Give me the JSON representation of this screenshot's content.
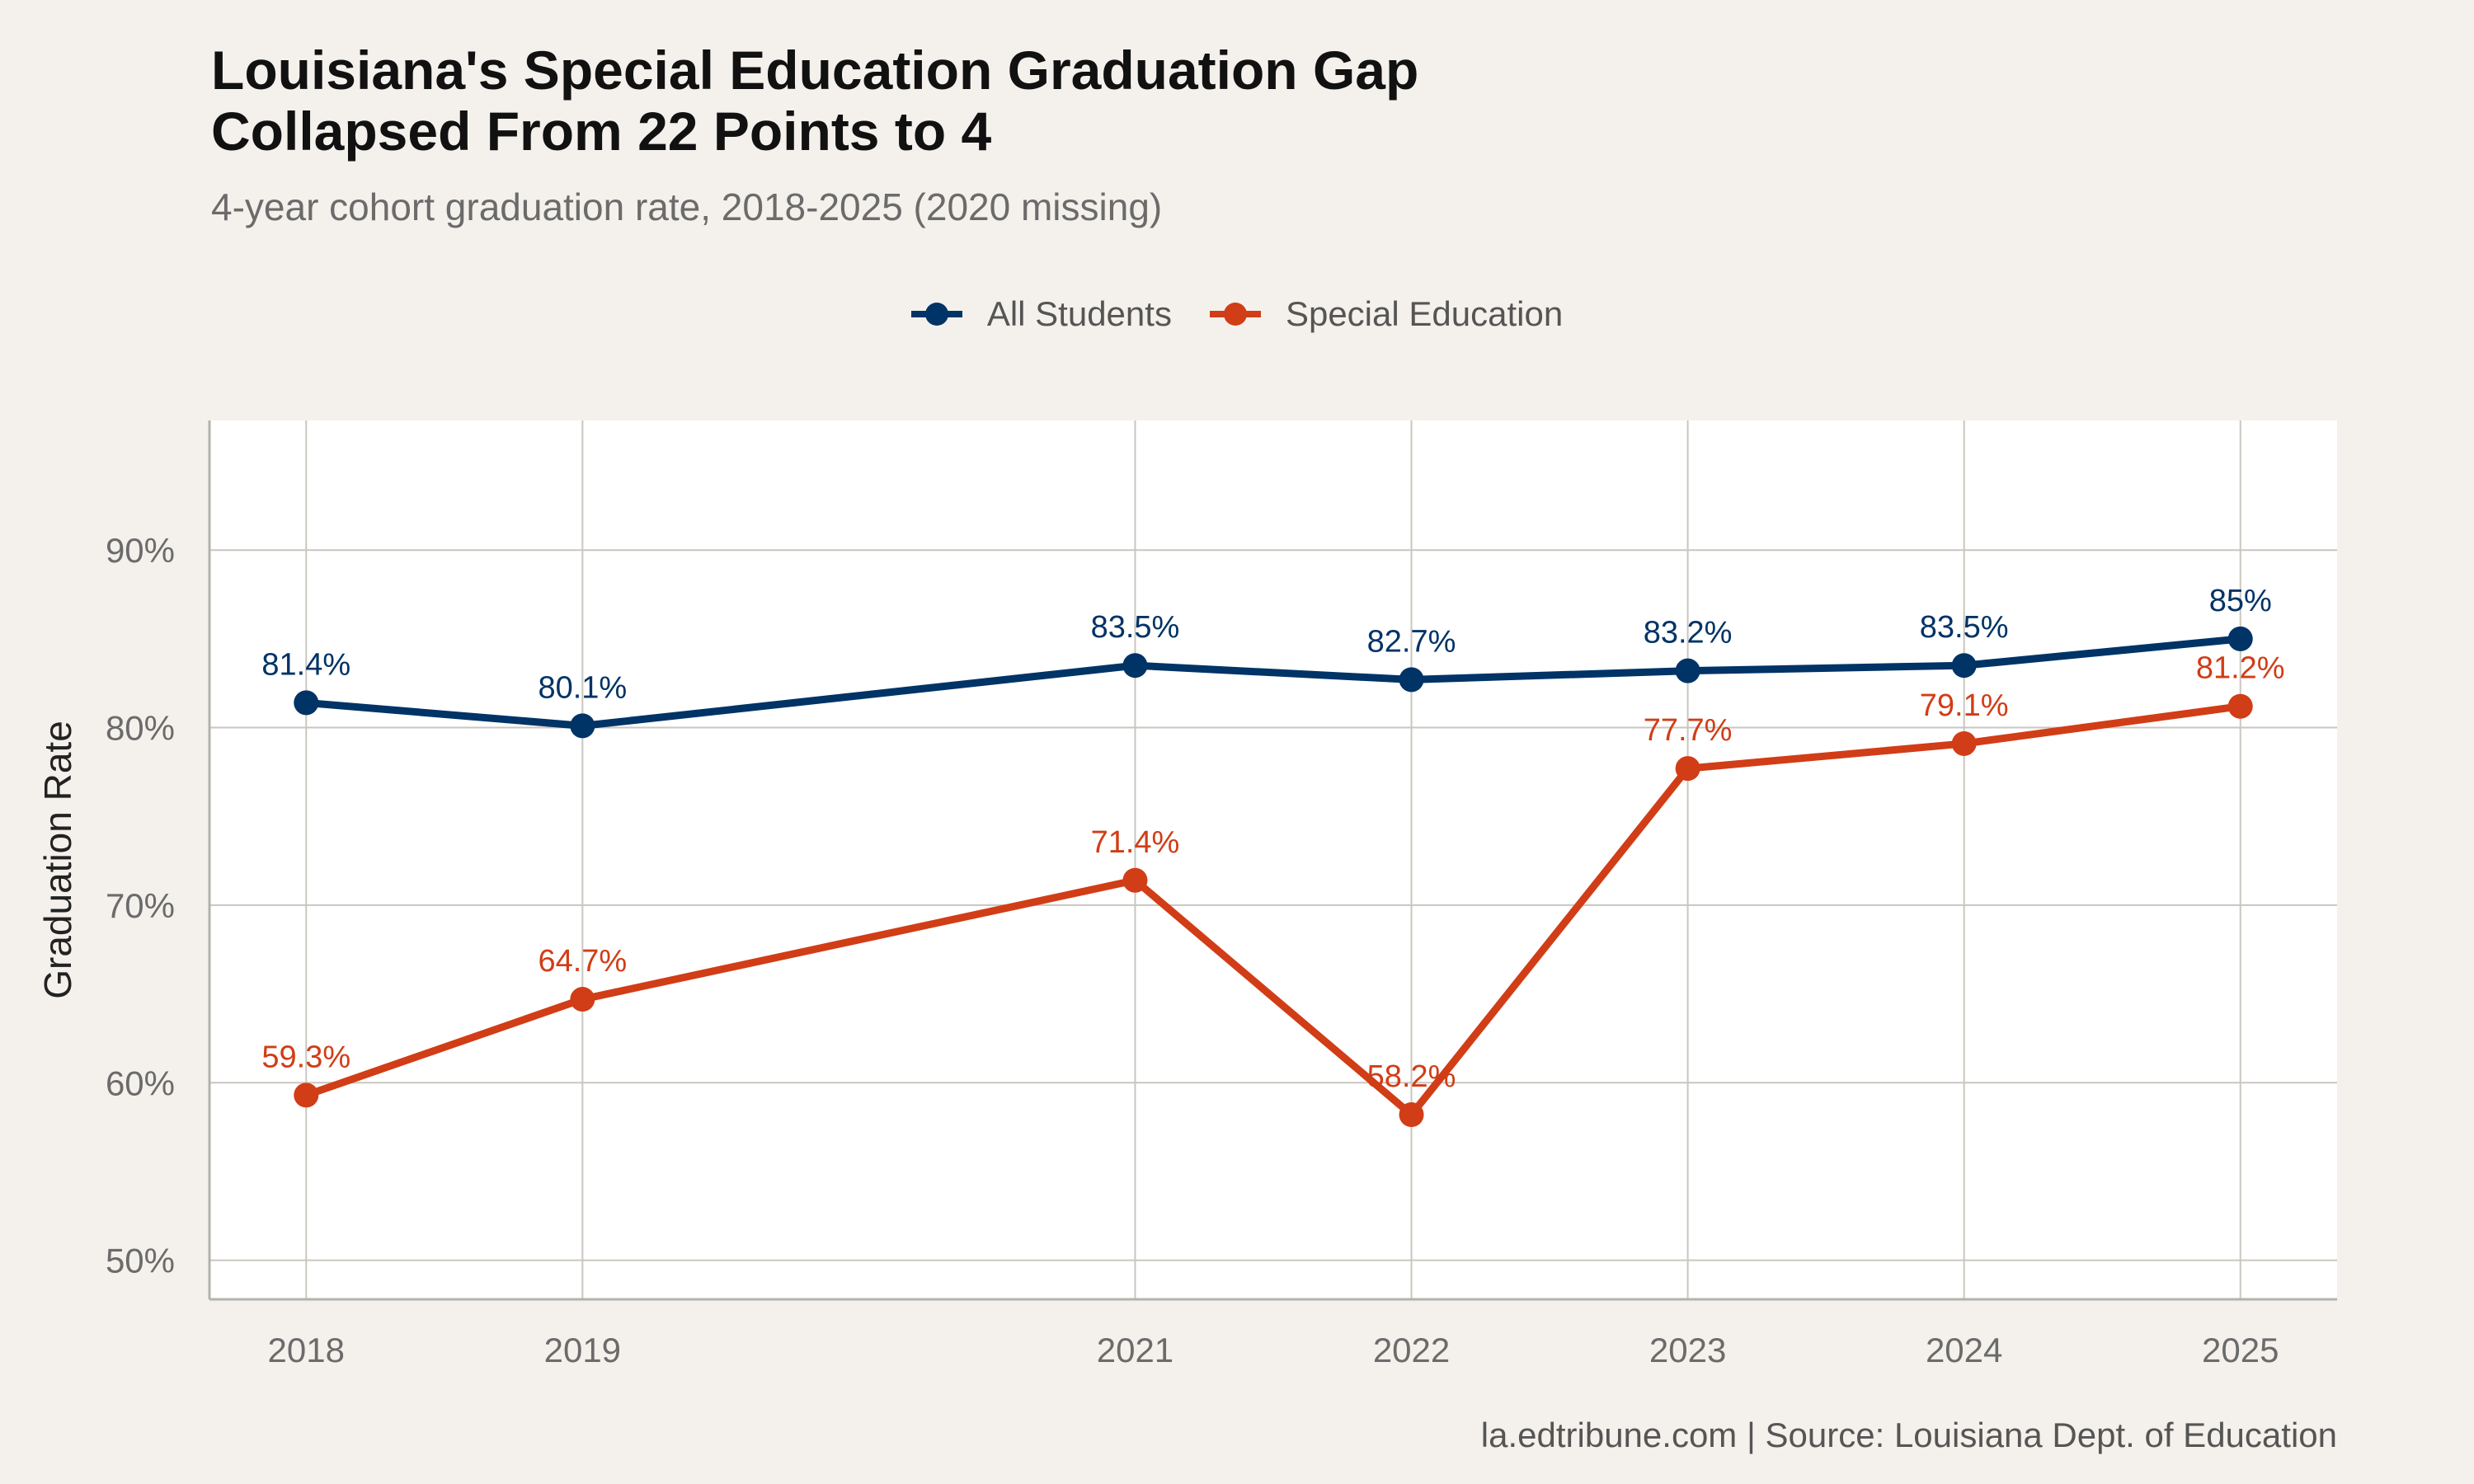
{
  "chart_data": {
    "type": "line",
    "title_lines": [
      "Louisiana's Special Education Graduation Gap",
      "Collapsed From 22 Points to 4"
    ],
    "subtitle": "4-year cohort graduation rate, 2018-2025 (2020 missing)",
    "xlabel": "",
    "ylabel": "Graduation Rate",
    "x": [
      2018,
      2019,
      2021,
      2022,
      2023,
      2024,
      2025
    ],
    "x_tick_labels": [
      "2018",
      "2019",
      "2021",
      "2022",
      "2023",
      "2024",
      "2025"
    ],
    "xlim": [
      2017.65,
      2025.35
    ],
    "y_ticks": [
      50,
      60,
      70,
      80,
      90
    ],
    "y_tick_labels": [
      "50%",
      "60%",
      "70%",
      "80%",
      "90%"
    ],
    "ylim": [
      47.8,
      97.3
    ],
    "grid": true,
    "legend_position": "top",
    "series": [
      {
        "name": "All Students",
        "color": "#003366",
        "values": [
          81.4,
          80.1,
          83.5,
          82.7,
          83.2,
          83.5,
          85.0
        ],
        "labels": [
          "81.4%",
          "80.1%",
          "83.5%",
          "82.7%",
          "83.2%",
          "83.5%",
          "85%"
        ]
      },
      {
        "name": "Special Education",
        "color": "#d13d16",
        "values": [
          59.3,
          64.7,
          71.4,
          58.2,
          77.7,
          79.1,
          81.2
        ],
        "labels": [
          "59.3%",
          "64.7%",
          "71.4%",
          "58.2%",
          "77.7%",
          "79.1%",
          "81.2%"
        ]
      }
    ],
    "caption": "la.edtribune.com | Source: Louisiana Dept. of Education"
  }
}
